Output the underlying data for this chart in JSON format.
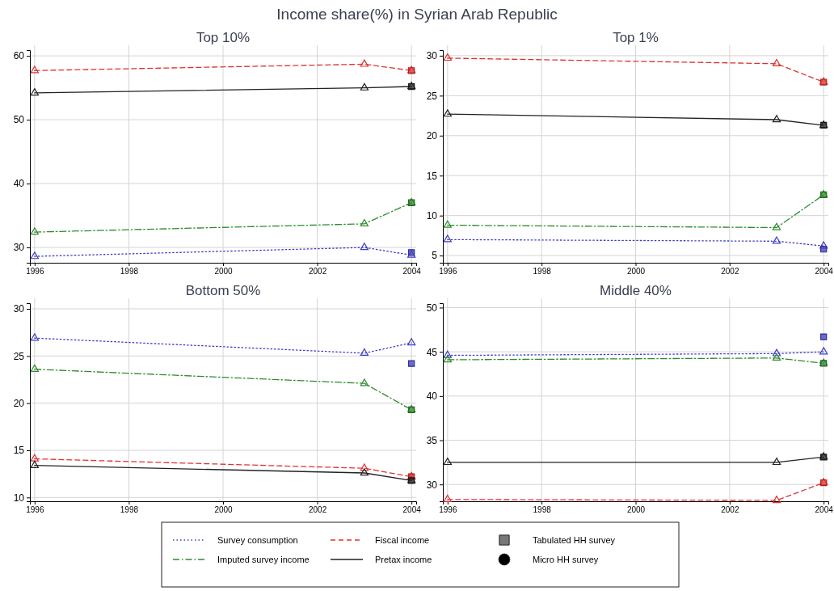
{
  "chart_data": [
    {
      "type": "line",
      "title": "Top 10%",
      "annotations": [
        "Income share(%) in Syrian Arab Republic",
        "Tabulated HH survey",
        "Micro HH survey"
      ],
      "legend": "bottom",
      "grid": true,
      "xlim": [
        1995.9,
        2004.1
      ],
      "xticks": [
        1996,
        1998,
        2000,
        2002,
        2004
      ],
      "ylim": [
        27.6,
        60.9
      ],
      "yticks": [
        30,
        40,
        50,
        60
      ],
      "series": [
        {
          "name": "Survey consumption",
          "color": "#3c3cc8",
          "line_style": "dotted",
          "marker": "triangle",
          "x": [
            1996,
            2003,
            2004
          ],
          "values": [
            28.6,
            30.0,
            28.8
          ]
        },
        {
          "name": "Imputed survey income",
          "color": "#2e8b2e",
          "line_style": "dashdot",
          "marker": "triangle",
          "x": [
            1996,
            2003,
            2004
          ],
          "values": [
            32.4,
            33.7,
            37.0
          ]
        },
        {
          "name": "Fiscal income",
          "color": "#e03030",
          "line_style": "dashed",
          "marker": "triangle",
          "x": [
            1996,
            2003,
            2004
          ],
          "values": [
            57.7,
            58.7,
            57.7
          ]
        },
        {
          "name": "Pretax income",
          "color": "#222222",
          "line_style": "solid",
          "marker": "triangle",
          "x": [
            1996,
            2003,
            2004
          ],
          "values": [
            54.2,
            55.0,
            55.2
          ]
        },
        {
          "type": "scatter",
          "marker": "square",
          "x": [
            2004,
            2004,
            2004,
            2004
          ],
          "values": [
            29.2,
            37.0,
            57.7,
            55.2
          ],
          "colors": [
            "#3c3cc8",
            "#2e8b2e",
            "#e03030",
            "#222222"
          ]
        }
      ]
    },
    {
      "type": "line",
      "title": "Top 1%",
      "grid": true,
      "xlim": [
        1995.9,
        2004.1
      ],
      "xticks": [
        1996,
        1998,
        2000,
        2002,
        2004
      ],
      "ylim": [
        4.1,
        30.7
      ],
      "yticks": [
        5,
        10,
        15,
        20,
        25,
        30
      ],
      "series": [
        {
          "color": "#3c3cc8",
          "line_style": "dotted",
          "marker": "triangle",
          "x": [
            1996,
            2003,
            2004
          ],
          "values": [
            7.0,
            6.8,
            6.2
          ]
        },
        {
          "color": "#2e8b2e",
          "line_style": "dashdot",
          "marker": "triangle",
          "x": [
            1996,
            2003,
            2004
          ],
          "values": [
            8.8,
            8.5,
            12.6
          ]
        },
        {
          "color": "#e03030",
          "line_style": "dashed",
          "marker": "triangle",
          "x": [
            1996,
            2003,
            2004
          ],
          "values": [
            29.7,
            29.0,
            26.7
          ]
        },
        {
          "color": "#222222",
          "line_style": "solid",
          "marker": "triangle",
          "x": [
            1996,
            2003,
            2004
          ],
          "values": [
            22.7,
            22.0,
            21.3
          ]
        },
        {
          "type": "scatter",
          "marker": "square",
          "x": [
            2004,
            2004,
            2004,
            2004
          ],
          "values": [
            5.8,
            12.6,
            26.7,
            21.3
          ],
          "colors": [
            "#3c3cc8",
            "#2e8b2e",
            "#e03030",
            "#222222"
          ]
        }
      ]
    },
    {
      "type": "line",
      "title": "Bottom 50%",
      "grid": true,
      "xlim": [
        1995.9,
        2004.1
      ],
      "xticks": [
        1996,
        1998,
        2000,
        2002,
        2004
      ],
      "ylim": [
        9.6,
        30.6
      ],
      "yticks": [
        10,
        15,
        20,
        25,
        30
      ],
      "series": [
        {
          "color": "#3c3cc8",
          "line_style": "dotted",
          "marker": "triangle",
          "x": [
            1996,
            2003,
            2004
          ],
          "values": [
            26.9,
            25.3,
            26.4
          ]
        },
        {
          "color": "#2e8b2e",
          "line_style": "dashdot",
          "marker": "triangle",
          "x": [
            1996,
            2003,
            2004
          ],
          "values": [
            23.6,
            22.1,
            19.3
          ]
        },
        {
          "color": "#e03030",
          "line_style": "dashed",
          "marker": "triangle",
          "x": [
            1996,
            2003,
            2004
          ],
          "values": [
            14.1,
            13.1,
            12.2
          ]
        },
        {
          "color": "#222222",
          "line_style": "solid",
          "marker": "triangle",
          "x": [
            1996,
            2003,
            2004
          ],
          "values": [
            13.4,
            12.6,
            11.8
          ]
        },
        {
          "type": "scatter",
          "marker": "square",
          "x": [
            2004,
            2004,
            2004,
            2004
          ],
          "values": [
            24.2,
            19.3,
            12.2,
            11.8
          ],
          "colors": [
            "#3c3cc8",
            "#2e8b2e",
            "#e03030",
            "#222222"
          ]
        }
      ]
    },
    {
      "type": "line",
      "title": "Middle 40%",
      "grid": true,
      "xlim": [
        1995.9,
        2004.1
      ],
      "xticks": [
        1996,
        1998,
        2000,
        2002,
        2004
      ],
      "ylim": [
        28.1,
        50.5
      ],
      "yticks": [
        30,
        35,
        40,
        45,
        50
      ],
      "series": [
        {
          "color": "#3c3cc8",
          "line_style": "dotted",
          "marker": "triangle",
          "x": [
            1996,
            2003,
            2004
          ],
          "values": [
            44.6,
            44.8,
            45.0
          ]
        },
        {
          "color": "#2e8b2e",
          "line_style": "dashdot",
          "marker": "triangle",
          "x": [
            1996,
            2003,
            2004
          ],
          "values": [
            44.1,
            44.3,
            43.7
          ]
        },
        {
          "color": "#e03030",
          "line_style": "dashed",
          "marker": "triangle",
          "x": [
            1996,
            2003,
            2004
          ],
          "values": [
            28.3,
            28.2,
            30.2
          ]
        },
        {
          "color": "#222222",
          "line_style": "solid",
          "marker": "triangle",
          "x": [
            1996,
            2003,
            2004
          ],
          "values": [
            32.5,
            32.5,
            33.1
          ]
        },
        {
          "type": "scatter",
          "marker": "square",
          "x": [
            2004,
            2004,
            2004,
            2004
          ],
          "values": [
            46.7,
            43.7,
            30.2,
            33.1
          ],
          "colors": [
            "#3c3cc8",
            "#2e8b2e",
            "#e03030",
            "#222222"
          ]
        }
      ]
    }
  ]
}
